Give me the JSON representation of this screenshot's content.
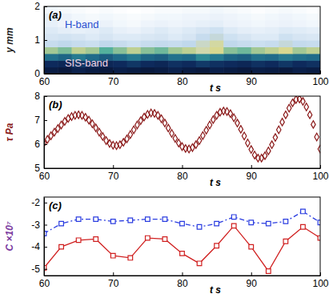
{
  "chart_data": [
    {
      "type": "heatmap",
      "title": "(a)",
      "xlabel": "t s",
      "ylabel": "y mm",
      "xlim": [
        60,
        100
      ],
      "ylim": [
        0,
        2
      ],
      "xticks": [
        60,
        70,
        80,
        90,
        100
      ],
      "yticks": [
        0,
        1,
        2
      ],
      "x": [
        61,
        63,
        65,
        67,
        69,
        71,
        73,
        75,
        77,
        79,
        81,
        83,
        85,
        87,
        89,
        91,
        93,
        95,
        97,
        99
      ],
      "y": [
        0.1,
        0.3,
        0.5,
        0.7,
        0.9,
        1.1,
        1.3,
        1.5,
        1.7,
        1.9
      ],
      "values": [
        [
          0.12,
          0.1,
          0.15,
          0.12,
          0.1,
          0.14,
          0.12,
          0.1,
          0.12,
          0.15,
          0.12,
          0.1,
          0.14,
          0.12,
          0.1,
          0.13,
          0.12,
          0.1,
          0.14,
          0.12
        ],
        [
          0.2,
          0.18,
          0.25,
          0.22,
          0.18,
          0.2,
          0.24,
          0.2,
          0.18,
          0.22,
          0.2,
          0.25,
          0.22,
          0.2,
          0.18,
          0.22,
          0.2,
          0.24,
          0.2,
          0.22
        ],
        [
          0.42,
          0.38,
          0.45,
          0.4,
          0.35,
          0.4,
          0.45,
          0.38,
          0.36,
          0.42,
          0.4,
          0.5,
          0.45,
          0.38,
          0.36,
          0.42,
          0.4,
          0.45,
          0.42,
          0.4
        ],
        [
          0.68,
          0.65,
          0.7,
          0.68,
          0.62,
          0.66,
          0.7,
          0.66,
          0.64,
          0.68,
          0.7,
          0.75,
          0.72,
          0.66,
          0.64,
          0.68,
          0.7,
          0.72,
          0.68,
          0.7
        ],
        [
          0.84,
          0.82,
          0.84,
          0.85,
          0.82,
          0.84,
          0.86,
          0.84,
          0.83,
          0.84,
          0.82,
          0.78,
          0.74,
          0.82,
          0.84,
          0.85,
          0.84,
          0.8,
          0.83,
          0.84
        ],
        [
          0.88,
          0.87,
          0.88,
          0.9,
          0.88,
          0.9,
          0.9,
          0.89,
          0.88,
          0.9,
          0.88,
          0.84,
          0.8,
          0.86,
          0.88,
          0.9,
          0.9,
          0.86,
          0.88,
          0.89
        ],
        [
          0.9,
          0.92,
          0.93,
          0.92,
          0.9,
          0.93,
          0.94,
          0.92,
          0.9,
          0.92,
          0.9,
          0.88,
          0.86,
          0.9,
          0.92,
          0.93,
          0.92,
          0.9,
          0.91,
          0.92
        ],
        [
          0.93,
          0.95,
          0.96,
          0.95,
          0.94,
          0.96,
          0.97,
          0.95,
          0.94,
          0.95,
          0.94,
          0.93,
          0.92,
          0.94,
          0.95,
          0.96,
          0.95,
          0.94,
          0.95,
          0.96
        ],
        [
          0.92,
          0.94,
          0.96,
          0.97,
          0.96,
          0.97,
          0.98,
          0.97,
          0.96,
          0.96,
          0.95,
          0.95,
          0.94,
          0.95,
          0.96,
          0.97,
          0.96,
          0.95,
          0.96,
          0.97
        ],
        [
          0.96,
          0.97,
          0.98,
          0.99,
          0.98,
          0.99,
          1.0,
          0.99,
          0.98,
          0.98,
          0.97,
          0.97,
          0.96,
          0.97,
          0.98,
          0.99,
          0.98,
          0.97,
          0.98,
          0.99
        ]
      ],
      "annotations": [
        {
          "text": "H-band",
          "x": 63,
          "y": 1.45,
          "color": "#2a4fd0"
        },
        {
          "text": "SIS-band",
          "x": 63,
          "y": 0.3,
          "color": "#f2d4e4"
        }
      ]
    },
    {
      "type": "scatter",
      "title": "(b)",
      "xlabel": "t s",
      "ylabel": "τ Pa",
      "xlim": [
        60,
        100
      ],
      "ylim": [
        5,
        8
      ],
      "xticks": [
        60,
        70,
        80,
        90,
        100
      ],
      "yticks": [
        5,
        6,
        7,
        8
      ],
      "x": [
        60,
        60.5,
        61,
        61.5,
        62,
        62.5,
        63,
        63.5,
        64,
        64.5,
        65,
        65.5,
        66,
        66.5,
        67,
        67.5,
        68,
        68.5,
        69,
        69.5,
        70,
        70.5,
        71,
        71.5,
        72,
        72.5,
        73,
        73.5,
        74,
        74.5,
        75,
        75.5,
        76,
        76.5,
        77,
        77.5,
        78,
        78.5,
        79,
        79.5,
        80,
        80.5,
        81,
        81.5,
        82,
        82.5,
        83,
        83.5,
        84,
        84.5,
        85,
        85.5,
        86,
        86.5,
        87,
        87.5,
        88,
        88.5,
        89,
        89.5,
        90,
        90.5,
        91,
        91.5,
        92,
        92.5,
        93,
        93.5,
        94,
        94.5,
        95,
        95.5,
        96,
        96.5,
        97,
        97.5,
        98,
        98.5,
        99,
        99.5,
        100
      ],
      "series": [
        {
          "color": "#8b1a1a",
          "marker": "diamond",
          "values": [
            6.05,
            6.2,
            6.35,
            6.5,
            6.65,
            6.8,
            6.95,
            7.07,
            7.15,
            7.2,
            7.22,
            7.2,
            7.12,
            7.0,
            6.85,
            6.68,
            6.5,
            6.32,
            6.15,
            6.03,
            5.96,
            5.94,
            5.98,
            6.08,
            6.22,
            6.4,
            6.6,
            6.8,
            6.98,
            7.13,
            7.24,
            7.3,
            7.28,
            7.2,
            7.06,
            6.88,
            6.67,
            6.45,
            6.24,
            6.05,
            5.9,
            5.82,
            5.8,
            5.86,
            5.98,
            6.15,
            6.36,
            6.58,
            6.8,
            7.02,
            7.2,
            7.33,
            7.38,
            7.36,
            7.27,
            7.1,
            6.88,
            6.62,
            6.34,
            6.05,
            5.78,
            5.55,
            5.42,
            5.42,
            5.52,
            5.72,
            5.98,
            6.28,
            6.6,
            6.92,
            7.22,
            7.5,
            7.72,
            7.86,
            7.88,
            7.78,
            7.55,
            7.22,
            6.82,
            6.3,
            5.8
          ]
        }
      ]
    },
    {
      "type": "line",
      "title": "(c)",
      "xlabel": "t s",
      "ylabel": "C ×10⁷",
      "xlim": [
        60,
        100
      ],
      "ylim": [
        -5.3,
        -1.75
      ],
      "xticks": [
        60,
        70,
        80,
        90,
        100
      ],
      "yticks": [
        -5,
        -4,
        -3,
        -2
      ],
      "x": [
        60,
        62.5,
        65,
        67.5,
        70,
        72.5,
        75,
        77.5,
        80,
        82.5,
        85,
        87.5,
        90,
        92.5,
        95,
        97.5,
        100
      ],
      "series": [
        {
          "color": "#2a3ce0",
          "marker": "square",
          "line_style": "dashdot",
          "values": [
            -3.4,
            -2.95,
            -2.75,
            -2.75,
            -2.85,
            -2.8,
            -2.75,
            -2.75,
            -2.95,
            -3.1,
            -2.95,
            -2.65,
            -2.9,
            -2.95,
            -2.85,
            -2.4,
            -2.9
          ]
        },
        {
          "color": "#d02020",
          "marker": "square",
          "line_style": "solid",
          "values": [
            -4.95,
            -4.0,
            -3.7,
            -3.65,
            -4.4,
            -4.5,
            -3.6,
            -3.65,
            -4.3,
            -4.75,
            -3.95,
            -3.05,
            -4.0,
            -5.1,
            -3.75,
            -3.1,
            -3.6
          ]
        }
      ]
    }
  ]
}
